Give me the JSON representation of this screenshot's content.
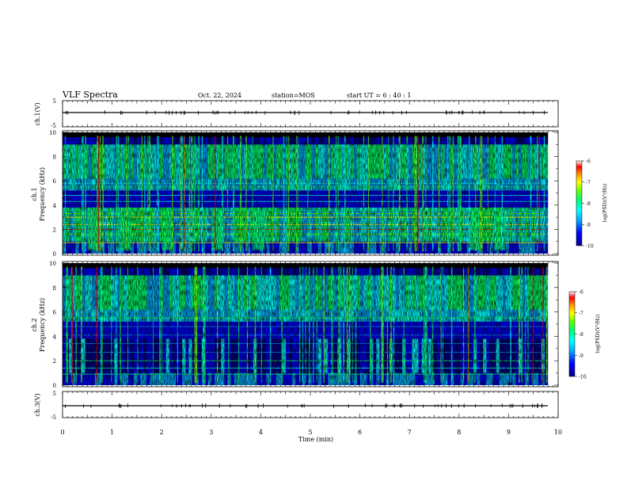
{
  "header": {
    "title": "VLF Spectra",
    "date": "Oct. 22, 2024",
    "station": "station=MOS",
    "start": "start UT =  6 : 40 : 1"
  },
  "chart_data": [
    {
      "type": "line",
      "name": "ch1-voltage",
      "ylabel": "ch.1(V)",
      "ylim": [
        -5,
        5
      ],
      "yticks": [
        "5",
        "-5"
      ],
      "x": [
        0,
        10
      ],
      "series": [
        {
          "values": [
            0,
            0
          ]
        }
      ]
    },
    {
      "type": "heatmap",
      "name": "ch1-spectrogram",
      "ylabel": "ch.1\nFrequency (kHz)",
      "ylim": [
        0,
        10
      ],
      "yticks": [
        "0",
        "2",
        "4",
        "6",
        "8",
        "10"
      ],
      "colorbar": {
        "label": "log(PSD)(V²/Hz)",
        "range": [
          -10,
          -6
        ],
        "ticks": [
          "-6",
          "-7",
          "-8",
          "-9",
          "-10"
        ]
      },
      "bursts_min": [
        0.6,
        1.25,
        2.1,
        3.1,
        3.95,
        8.3,
        8.8
      ]
    },
    {
      "type": "heatmap",
      "name": "ch2-spectrogram",
      "ylabel": "ch.2\nFrequency (kHz)",
      "ylim": [
        0,
        10
      ],
      "yticks": [
        "0",
        "2",
        "4",
        "6",
        "8",
        "10"
      ],
      "colorbar": {
        "label": "log(PSD)(V²/Hz)",
        "range": [
          -10,
          -6
        ],
        "ticks": [
          "-6",
          "-7",
          "-8",
          "-9",
          "-10"
        ]
      }
    },
    {
      "type": "line",
      "name": "ch3-voltage",
      "ylabel": "ch.3(V)",
      "ylim": [
        -5,
        5
      ],
      "yticks": [
        "5",
        "-5"
      ],
      "x": [
        0,
        10
      ],
      "series": [
        {
          "values": [
            0,
            0
          ]
        }
      ]
    }
  ],
  "x_axis": {
    "label": "Time (min)",
    "xlim": [
      0,
      10
    ],
    "ticks": [
      "0",
      "1",
      "2",
      "3",
      "4",
      "5",
      "6",
      "7",
      "8",
      "9",
      "10"
    ]
  },
  "colors": {
    "colormap": [
      "#000000",
      "#00008b",
      "#0000ff",
      "#00aaff",
      "#00ffff",
      "#00ff66",
      "#66ff00",
      "#ffff00",
      "#ff8800",
      "#ff0000",
      "#ffffff"
    ]
  }
}
